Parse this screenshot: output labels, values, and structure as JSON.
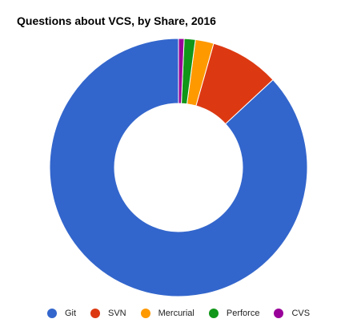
{
  "chart_data": {
    "type": "pie",
    "title": "Questions about VCS, by Share, 2016",
    "donut": true,
    "legend_position": "bottom",
    "categories": [
      "Git",
      "SVN",
      "Mercurial",
      "Perforce",
      "CVS"
    ],
    "values": [
      86.9,
      8.7,
      2.3,
      1.4,
      0.7
    ],
    "value_unit": "percent (estimated)",
    "colors": [
      "#3366cc",
      "#dc3912",
      "#ff9900",
      "#109618",
      "#990099"
    ],
    "start_angle_deg": 0,
    "direction": "counterclockwise"
  }
}
